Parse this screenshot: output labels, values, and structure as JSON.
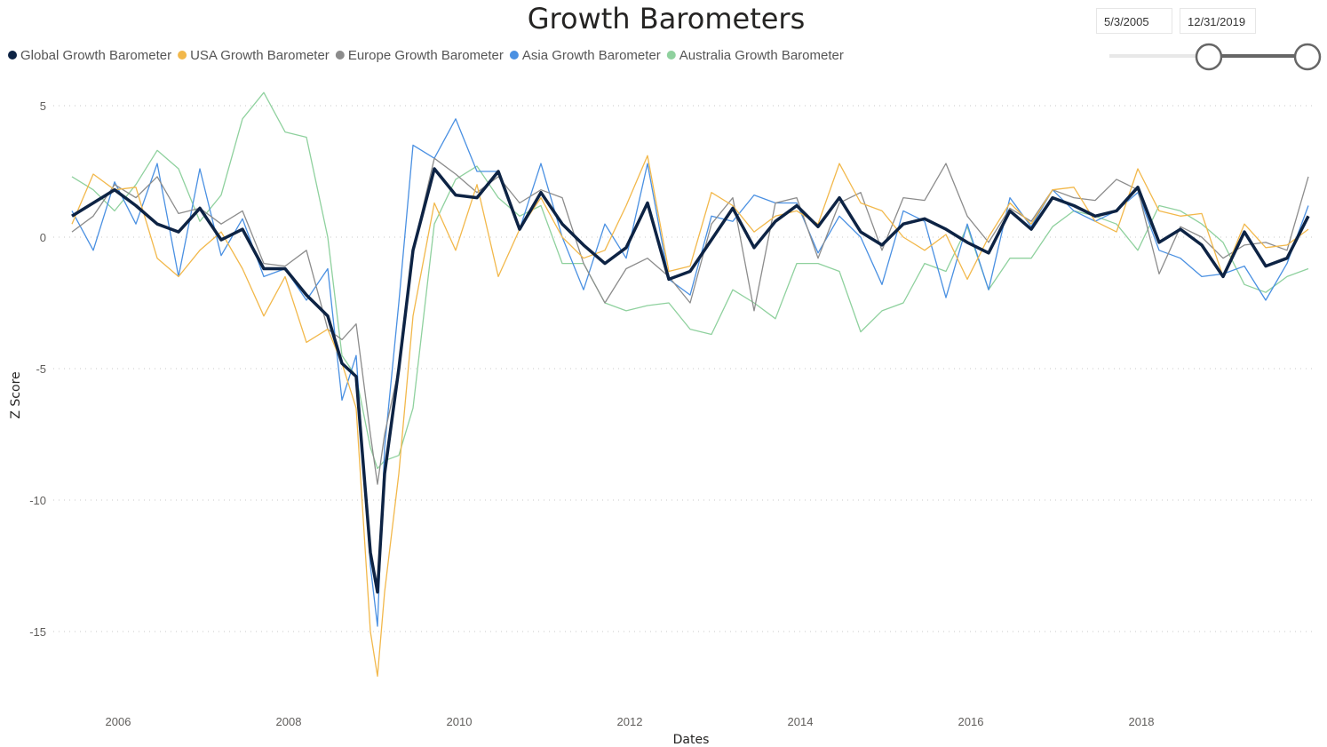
{
  "slicer": {
    "start_date": "5/3/2005",
    "end_date": "12/31/2019",
    "range_fraction": [
      0.5,
      1.0
    ]
  },
  "chart_data": {
    "type": "line",
    "title": "Growth Barometers",
    "xlabel": "Dates",
    "ylabel": "Z Score",
    "ylim": [
      -17.5,
      5.8
    ],
    "xlim": [
      "2005-05",
      "2019-12"
    ],
    "yticks": [
      5,
      0,
      -5,
      -10,
      -15
    ],
    "xticks": [
      "2006",
      "2008",
      "2010",
      "2012",
      "2014",
      "2016",
      "2018"
    ],
    "grid": "horizontal dotted",
    "legend": "top-left",
    "x": [
      "2005-06",
      "2005-09",
      "2005-12",
      "2006-03",
      "2006-06",
      "2006-09",
      "2006-12",
      "2007-03",
      "2007-06",
      "2007-09",
      "2007-12",
      "2008-03",
      "2008-06",
      "2008-08",
      "2008-10",
      "2008-12",
      "2009-01",
      "2009-02",
      "2009-04",
      "2009-06",
      "2009-09",
      "2009-12",
      "2010-03",
      "2010-06",
      "2010-09",
      "2010-12",
      "2011-03",
      "2011-06",
      "2011-09",
      "2011-12",
      "2012-03",
      "2012-06",
      "2012-09",
      "2012-12",
      "2013-03",
      "2013-06",
      "2013-09",
      "2013-12",
      "2014-03",
      "2014-06",
      "2014-09",
      "2014-12",
      "2015-03",
      "2015-06",
      "2015-09",
      "2015-12",
      "2016-03",
      "2016-06",
      "2016-09",
      "2016-12",
      "2017-03",
      "2017-06",
      "2017-09",
      "2017-12",
      "2018-03",
      "2018-06",
      "2018-09",
      "2018-12",
      "2019-03",
      "2019-06",
      "2019-09",
      "2019-12"
    ],
    "series": [
      {
        "name": "Global Growth Barometer",
        "color": "#0D2344",
        "values": [
          0.8,
          1.3,
          1.8,
          1.2,
          0.5,
          0.2,
          1.1,
          -0.1,
          0.3,
          -1.2,
          -1.2,
          -2.2,
          -3.0,
          -4.8,
          -5.3,
          -12.0,
          -13.5,
          -9.0,
          -5.0,
          -0.5,
          2.6,
          1.6,
          1.5,
          2.5,
          0.3,
          1.7,
          0.5,
          -0.3,
          -1.0,
          -0.4,
          1.3,
          -1.6,
          -1.3,
          -0.1,
          1.1,
          -0.4,
          0.6,
          1.2,
          0.4,
          1.5,
          0.2,
          -0.3,
          0.5,
          0.7,
          0.3,
          -0.2,
          -0.6,
          1.0,
          0.3,
          1.5,
          1.2,
          0.8,
          1.0,
          1.9,
          -0.2,
          0.3,
          -0.3,
          -1.5,
          0.2,
          -1.1,
          -0.8,
          0.8
        ]
      },
      {
        "name": "USA Growth Barometer",
        "color": "#F2B84B",
        "values": [
          0.5,
          2.4,
          1.8,
          1.9,
          -0.8,
          -1.5,
          -0.5,
          0.2,
          -1.2,
          -3.0,
          -1.5,
          -4.0,
          -3.5,
          -4.8,
          -6.5,
          -15.0,
          -16.7,
          -13.5,
          -9.0,
          -3.0,
          1.3,
          -0.5,
          2.0,
          -1.5,
          0.3,
          1.5,
          0.0,
          -0.8,
          -0.5,
          1.2,
          3.1,
          -1.3,
          -1.1,
          1.7,
          1.2,
          0.2,
          0.8,
          1.0,
          0.5,
          2.8,
          1.3,
          1.0,
          0.0,
          -0.5,
          0.1,
          -1.6,
          0.0,
          1.3,
          0.5,
          1.8,
          1.9,
          0.6,
          0.2,
          2.6,
          1.0,
          0.8,
          0.9,
          -1.5,
          0.5,
          -0.4,
          -0.3,
          0.3
        ]
      },
      {
        "name": "Europe Growth Barometer",
        "color": "#8C8C8C",
        "values": [
          0.2,
          0.8,
          2.0,
          1.5,
          2.3,
          0.9,
          1.1,
          0.5,
          1.0,
          -1.0,
          -1.1,
          -0.5,
          -3.5,
          -3.9,
          -3.3,
          -7.5,
          -9.4,
          -7.5,
          -5.0,
          -0.5,
          3.0,
          2.4,
          1.7,
          2.3,
          1.3,
          1.8,
          1.5,
          -1.0,
          -2.5,
          -1.2,
          -0.8,
          -1.5,
          -2.5,
          0.5,
          1.5,
          -2.8,
          1.3,
          1.5,
          -0.8,
          1.3,
          1.7,
          -0.5,
          1.5,
          1.4,
          2.8,
          0.8,
          -0.2,
          1.1,
          0.6,
          1.8,
          1.5,
          1.4,
          2.2,
          1.8,
          -1.4,
          0.4,
          0.0,
          -0.8,
          -0.3,
          -0.2,
          -0.5,
          2.3
        ]
      },
      {
        "name": "Asia Growth Barometer",
        "color": "#4A90E2",
        "values": [
          1.0,
          -0.5,
          2.1,
          0.5,
          2.8,
          -1.5,
          2.6,
          -0.7,
          0.7,
          -1.5,
          -1.2,
          -2.4,
          -1.2,
          -6.2,
          -4.5,
          -12.5,
          -14.8,
          -8.0,
          -2.5,
          3.5,
          3.0,
          4.5,
          2.5,
          2.5,
          0.3,
          2.8,
          0.0,
          -2.0,
          0.5,
          -0.8,
          2.8,
          -1.6,
          -2.2,
          0.8,
          0.6,
          1.6,
          1.3,
          1.3,
          -0.6,
          0.8,
          0.0,
          -1.8,
          1.0,
          0.6,
          -2.3,
          0.5,
          -2.0,
          1.5,
          0.4,
          1.8,
          1.0,
          0.6,
          1.0,
          1.7,
          -0.5,
          -0.8,
          -1.5,
          -1.4,
          -1.1,
          -2.4,
          -1.0,
          1.2
        ]
      },
      {
        "name": "Australia Growth Barometer",
        "color": "#8FD19E",
        "values": [
          2.3,
          1.8,
          1.0,
          2.0,
          3.3,
          2.6,
          0.6,
          1.6,
          4.5,
          5.5,
          4.0,
          3.8,
          0.0,
          -4.5,
          -5.3,
          -8.0,
          -8.8,
          -8.5,
          -8.3,
          -6.5,
          0.5,
          2.2,
          2.7,
          1.5,
          0.8,
          1.2,
          -1.0,
          -1.0,
          -2.5,
          -2.8,
          -2.6,
          -2.5,
          -3.5,
          -3.7,
          -2.0,
          -2.5,
          -3.1,
          -1.0,
          -1.0,
          -1.3,
          -3.6,
          -2.8,
          -2.5,
          -1.0,
          -1.3,
          0.4,
          -2.0,
          -0.8,
          -0.8,
          0.4,
          1.0,
          0.8,
          0.5,
          -0.5,
          1.2,
          1.0,
          0.5,
          -0.2,
          -1.8,
          -2.1,
          -1.5,
          -1.2
        ]
      }
    ]
  }
}
